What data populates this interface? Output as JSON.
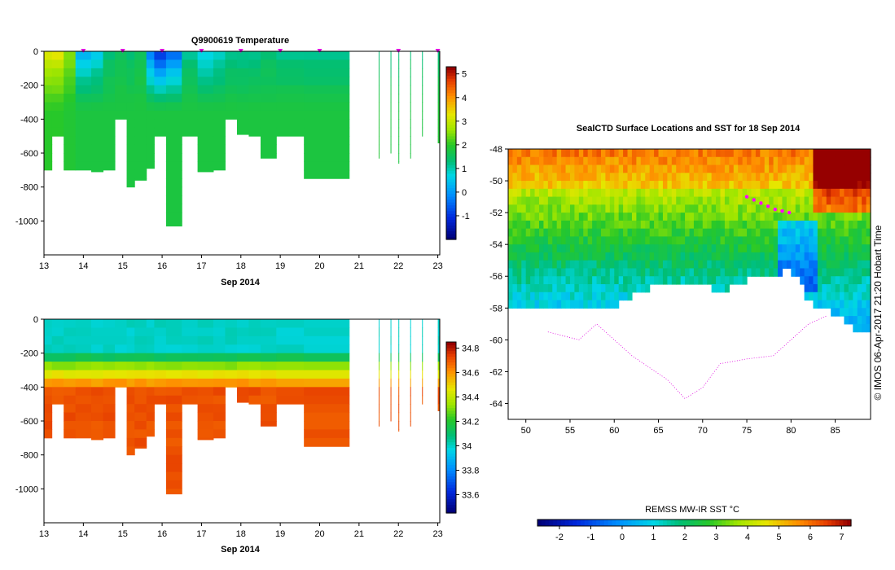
{
  "chart_data": [
    {
      "type": "heatmap",
      "name": "temperature-section",
      "title": "Q9900619  Temperature",
      "xlabel": "Sep 2014",
      "ylabel": "",
      "xlim": [
        13,
        23.05
      ],
      "ylim": [
        -1200,
        0
      ],
      "x_ticks": [
        "13",
        "14",
        "15",
        "16",
        "17",
        "18",
        "19",
        "20",
        "21",
        "22",
        "23"
      ],
      "y_ticks": [
        "0",
        "-200",
        "-400",
        "-600",
        "-800",
        "-1000"
      ],
      "y_tick_values": [
        0,
        -200,
        -400,
        -600,
        -800,
        -1000
      ],
      "colorbar": {
        "min": -2,
        "max": 5.3,
        "ticks": [
          "-1",
          "0",
          "1",
          "2",
          "3",
          "4",
          "5"
        ],
        "tick_values": [
          -1,
          0,
          1,
          2,
          3,
          4,
          5
        ]
      },
      "profile_markers_x": [
        14.0,
        15.0,
        16.0,
        17.0,
        18.0,
        19.0,
        20.0,
        22.0,
        23.0
      ],
      "profiles": [
        {
          "x": 13.0,
          "depth": 700,
          "surf": 3.3,
          "deep": 2.0
        },
        {
          "x": 13.2,
          "depth": 500,
          "surf": 3.2,
          "deep": 2.0
        },
        {
          "x": 13.5,
          "depth": 700,
          "surf": 2.6,
          "deep": 1.9
        },
        {
          "x": 13.8,
          "depth": 700,
          "surf": 0.3,
          "deep": 1.8
        },
        {
          "x": 14.2,
          "depth": 710,
          "surf": 0.6,
          "deep": 1.8
        },
        {
          "x": 14.5,
          "depth": 700,
          "surf": 1.3,
          "deep": 1.8
        },
        {
          "x": 14.8,
          "depth": 400,
          "surf": 1.5,
          "deep": 1.8
        },
        {
          "x": 15.1,
          "depth": 800,
          "surf": 1.4,
          "deep": 1.8
        },
        {
          "x": 15.3,
          "depth": 760,
          "surf": 1.6,
          "deep": 1.8
        },
        {
          "x": 15.6,
          "depth": 690,
          "surf": -0.2,
          "deep": 1.8
        },
        {
          "x": 15.8,
          "depth": 500,
          "surf": -1.0,
          "deep": 1.8
        },
        {
          "x": 16.1,
          "depth": 1030,
          "surf": -0.5,
          "deep": 1.8
        },
        {
          "x": 16.5,
          "depth": 500,
          "surf": 1.2,
          "deep": 1.8
        },
        {
          "x": 16.9,
          "depth": 710,
          "surf": 0.6,
          "deep": 1.8
        },
        {
          "x": 17.3,
          "depth": 700,
          "surf": 0.8,
          "deep": 1.8
        },
        {
          "x": 17.6,
          "depth": 400,
          "surf": 1.2,
          "deep": 1.8
        },
        {
          "x": 17.9,
          "depth": 490,
          "surf": 1.1,
          "deep": 1.8
        },
        {
          "x": 18.2,
          "depth": 500,
          "surf": 1.2,
          "deep": 1.8
        },
        {
          "x": 18.5,
          "depth": 630,
          "surf": 1.3,
          "deep": 1.8
        },
        {
          "x": 18.9,
          "depth": 500,
          "surf": 1.2,
          "deep": 1.8
        },
        {
          "x": 19.6,
          "depth": 750,
          "surf": 1.1,
          "deep": 1.8
        },
        {
          "x": 21.5,
          "depth": 630,
          "surf": 1.3,
          "deep": 1.9
        },
        {
          "x": 21.8,
          "depth": 600,
          "surf": 1.3,
          "deep": 1.8
        },
        {
          "x": 22.0,
          "depth": 660,
          "surf": 1.3,
          "deep": 1.8
        },
        {
          "x": 22.3,
          "depth": 630,
          "surf": 1.4,
          "deep": 1.8
        },
        {
          "x": 22.6,
          "depth": 500,
          "surf": 1.3,
          "deep": 1.8
        },
        {
          "x": 23.0,
          "depth": 540,
          "surf": 1.3,
          "deep": 1.9
        }
      ],
      "gap": [
        20.75,
        21.45
      ]
    },
    {
      "type": "heatmap",
      "name": "salinity-section",
      "title": "",
      "xlabel": "Sep 2014",
      "ylabel": "",
      "xlim": [
        13,
        23.05
      ],
      "ylim": [
        -1200,
        0
      ],
      "x_ticks": [
        "13",
        "14",
        "15",
        "16",
        "17",
        "18",
        "19",
        "20",
        "21",
        "22",
        "23"
      ],
      "y_ticks": [
        "0",
        "-200",
        "-400",
        "-600",
        "-800",
        "-1000"
      ],
      "y_tick_values": [
        0,
        -200,
        -400,
        -600,
        -800,
        -1000
      ],
      "colorbar": {
        "min": 33.45,
        "max": 34.85,
        "ticks": [
          "33.6",
          "33.8",
          "34",
          "34.2",
          "34.4",
          "34.6",
          "34.8"
        ],
        "tick_values": [
          33.6,
          33.8,
          34.0,
          34.2,
          34.4,
          34.6,
          34.8
        ]
      },
      "surface_value": 34.0,
      "deep_value": 34.72,
      "gap": [
        20.75,
        21.45
      ]
    },
    {
      "type": "heatmap",
      "name": "sst-map",
      "title": "SealCTD Surface Locations and SST for 18 Sep 2014",
      "xlabel": "",
      "ylabel": "",
      "xlim": [
        48,
        89
      ],
      "ylim": [
        -65,
        -48
      ],
      "x_ticks": [
        "50",
        "55",
        "60",
        "65",
        "70",
        "75",
        "80",
        "85"
      ],
      "x_tick_values": [
        50,
        55,
        60,
        65,
        70,
        75,
        80,
        85
      ],
      "y_ticks": [
        "-48",
        "-50",
        "-52",
        "-54",
        "-56",
        "-58",
        "-60",
        "-62",
        "-64"
      ],
      "y_tick_values": [
        -48,
        -50,
        -52,
        -54,
        -56,
        -58,
        -60,
        -62,
        -64
      ],
      "colorbar": {
        "title": "REMSS MW-IR SST °C",
        "min": -2.7,
        "max": 7.3,
        "ticks": [
          "-2",
          "-1",
          "0",
          "1",
          "2",
          "3",
          "4",
          "5",
          "6",
          "7"
        ],
        "tick_values": [
          -2,
          -1,
          0,
          1,
          2,
          3,
          4,
          5,
          6,
          7
        ]
      },
      "seal_track": [
        [
          75.0,
          -51.0
        ],
        [
          75.8,
          -51.2
        ],
        [
          76.6,
          -51.4
        ],
        [
          77.4,
          -51.6
        ],
        [
          78.2,
          -51.8
        ],
        [
          79.0,
          -51.9
        ],
        [
          79.8,
          -52.0
        ]
      ],
      "ice_edge": [
        [
          48,
          -58.0
        ],
        [
          52,
          -57.8
        ],
        [
          56,
          -57.5
        ],
        [
          60,
          -57.6
        ],
        [
          63,
          -56.8
        ],
        [
          65,
          -56.3
        ],
        [
          67,
          -56.0
        ],
        [
          70,
          -56.2
        ],
        [
          72,
          -56.8
        ],
        [
          74,
          -56.3
        ],
        [
          76,
          -55.8
        ],
        [
          78,
          -55.6
        ],
        [
          80,
          -55.4
        ],
        [
          81,
          -56.0
        ],
        [
          82,
          -57.4
        ],
        [
          84,
          -57.8
        ],
        [
          86,
          -58.4
        ],
        [
          87,
          -59.0
        ],
        [
          89,
          -59.2
        ]
      ]
    }
  ],
  "footer": {
    "timestamp": "© IMOS 06-Apr-2017 21:20 Hobart Time"
  }
}
